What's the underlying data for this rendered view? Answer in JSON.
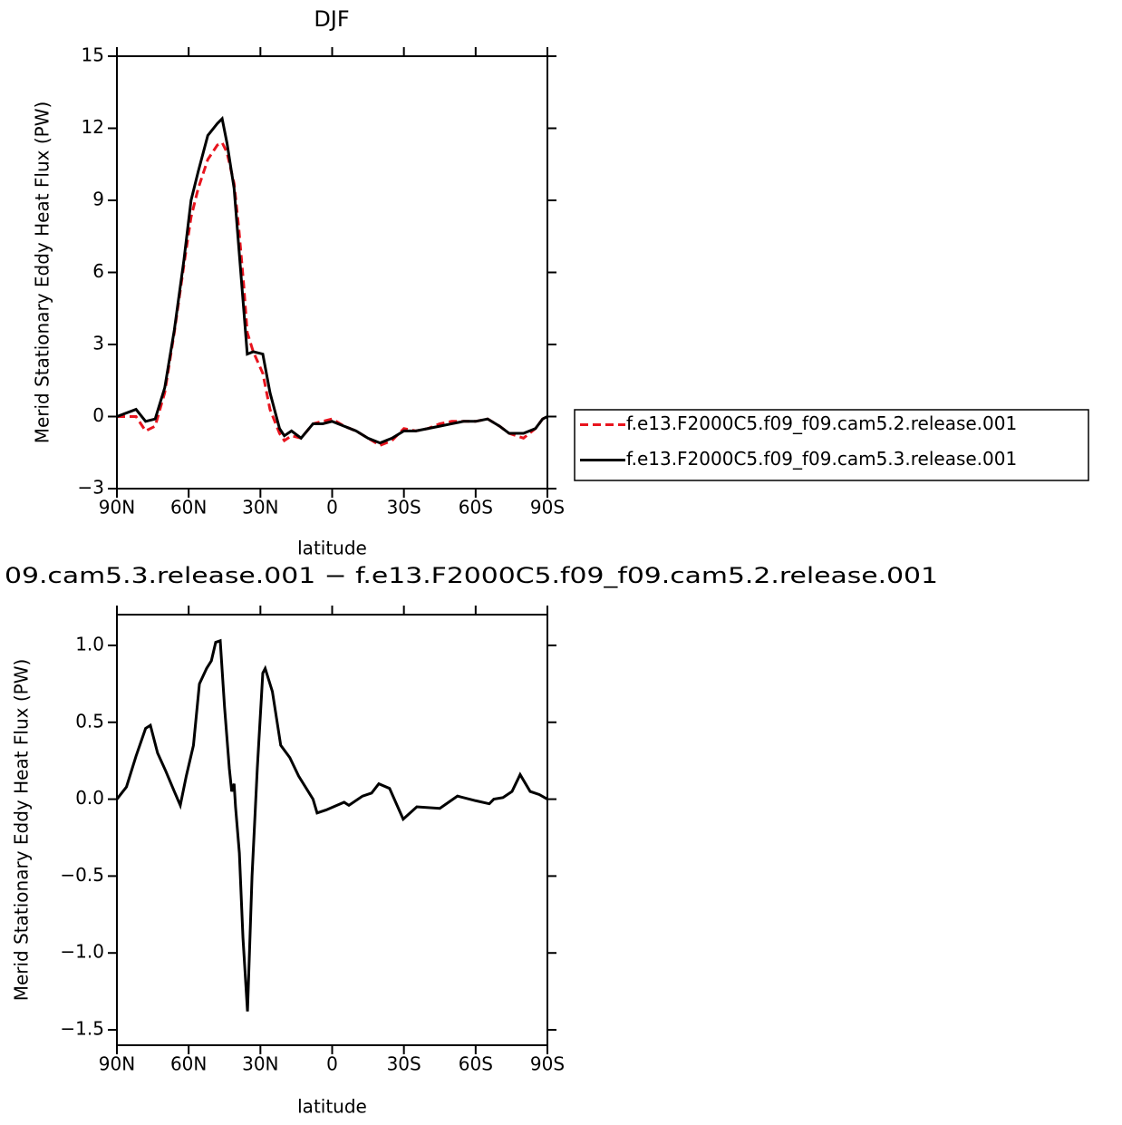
{
  "chart_data": [
    {
      "type": "line",
      "title": "DJF",
      "xlabel": "latitude",
      "ylabel": "Merid Stationary Eddy Heat Flux (PW)",
      "x": [
        90,
        82,
        78,
        74,
        70,
        66,
        62,
        59,
        56,
        52,
        48,
        46,
        44,
        41,
        39,
        37,
        35.5,
        33,
        29,
        26,
        22,
        20,
        17,
        13,
        8,
        4,
        0,
        -5,
        -10,
        -15,
        -20,
        -25,
        -30,
        -35,
        -40,
        -45,
        -50,
        -55,
        -60,
        -65,
        -70,
        -74,
        -80,
        -85,
        -88,
        -90
      ],
      "series": [
        {
          "name": "f.e13.F2000C5.f09_f09.cam5.2.release.001",
          "color": "#e8141e",
          "line_style": "dashed",
          "values": [
            0,
            0,
            -0.6,
            -0.4,
            1.0,
            3.5,
            6.3,
            8.3,
            9.5,
            10.7,
            11.3,
            11.4,
            11.0,
            9.7,
            7.8,
            5.5,
            3.5,
            2.7,
            1.8,
            0.3,
            -0.7,
            -1.0,
            -0.8,
            -0.9,
            -0.3,
            -0.2,
            -0.1,
            -0.4,
            -0.6,
            -0.9,
            -1.2,
            -1.0,
            -0.5,
            -0.6,
            -0.5,
            -0.3,
            -0.2,
            -0.2,
            -0.2,
            -0.1,
            -0.4,
            -0.7,
            -0.9,
            -0.5,
            -0.1,
            0
          ]
        },
        {
          "name": "f.e13.F2000C5.f09_f09.cam5.3.release.001",
          "color": "#000000",
          "line_style": "solid",
          "values": [
            0,
            0.3,
            -0.2,
            -0.1,
            1.2,
            3.6,
            6.5,
            9.0,
            10.2,
            11.7,
            12.2,
            12.4,
            11.4,
            9.5,
            7.0,
            4.5,
            2.6,
            2.7,
            2.6,
            1.0,
            -0.5,
            -0.8,
            -0.6,
            -0.9,
            -0.3,
            -0.3,
            -0.2,
            -0.4,
            -0.6,
            -0.9,
            -1.1,
            -0.9,
            -0.6,
            -0.6,
            -0.5,
            -0.4,
            -0.3,
            -0.2,
            -0.2,
            -0.1,
            -0.4,
            -0.7,
            -0.7,
            -0.5,
            -0.1,
            0
          ]
        }
      ],
      "xlim": [
        90,
        -90
      ],
      "xticks": [
        {
          "value": 90,
          "label": "90N"
        },
        {
          "value": 60,
          "label": "60N"
        },
        {
          "value": 30,
          "label": "30N"
        },
        0,
        {
          "value": -30,
          "label": "30S"
        },
        {
          "value": -60,
          "label": "60S"
        },
        {
          "value": -90,
          "label": "90S"
        }
      ],
      "ylim": [
        -3,
        15
      ],
      "yticks": [
        {
          "value": -3,
          "label": "−3"
        },
        0,
        3,
        6,
        9,
        12,
        15
      ],
      "legend": "outside-right"
    },
    {
      "type": "line",
      "title": "09.cam5.3.release.001 − f.e13.F2000C5.f09_f09.cam5.2.release.001",
      "xlabel": "latitude",
      "ylabel": "Merid Stationary Eddy Heat Flux (PW)",
      "x": [
        90,
        86,
        82,
        78,
        76,
        73,
        69.5,
        66,
        63.5,
        61,
        58,
        55.5,
        52.5,
        50.5,
        48.7,
        46.8,
        45,
        43,
        42,
        41,
        40.4,
        38.8,
        37.3,
        35.4,
        33.5,
        31.3,
        29,
        28,
        25,
        21.5,
        17.7,
        14,
        8,
        6.3,
        2.5,
        -5,
        -7,
        -12.7,
        -16.5,
        -19.5,
        -24,
        -29.7,
        -35.4,
        -45,
        -52.4,
        -60,
        -65.7,
        -67.6,
        -71.4,
        -75.2,
        -78.6,
        -82.8,
        -86.6,
        -90
      ],
      "series": [
        {
          "color": "#000000",
          "line_style": "solid",
          "values": [
            0,
            0.08,
            0.28,
            0.46,
            0.48,
            0.3,
            0.18,
            0.05,
            -0.04,
            0.15,
            0.35,
            0.75,
            0.85,
            0.9,
            1.02,
            1.03,
            0.6,
            0.2,
            0.05,
            0.1,
            -0.05,
            -0.35,
            -0.9,
            -1.38,
            -0.5,
            0.2,
            0.82,
            0.85,
            0.7,
            0.35,
            0.27,
            0.15,
            0.0,
            -0.09,
            -0.07,
            -0.02,
            -0.04,
            0.02,
            0.04,
            0.1,
            0.07,
            -0.13,
            -0.05,
            -0.06,
            0.02,
            -0.01,
            -0.03,
            0.0,
            0.01,
            0.05,
            0.16,
            0.05,
            0.03,
            0
          ]
        }
      ],
      "xlim": [
        90,
        -90
      ],
      "xticks": [
        {
          "value": 90,
          "label": "90N"
        },
        {
          "value": 60,
          "label": "60N"
        },
        {
          "value": 30,
          "label": "30N"
        },
        0,
        {
          "value": -30,
          "label": "30S"
        },
        {
          "value": -60,
          "label": "60S"
        },
        {
          "value": -90,
          "label": "90S"
        }
      ],
      "ylim": [
        -1.6,
        1.2
      ],
      "yticks": [
        {
          "value": -1.5,
          "label": "−1.5"
        },
        {
          "value": -1.0,
          "label": "−1.0"
        },
        {
          "value": -0.5,
          "label": "−0.5"
        },
        {
          "value": 0,
          "label": "0.0"
        },
        {
          "value": 0.5,
          "label": "0.5"
        },
        {
          "value": 1.0,
          "label": "1.0"
        }
      ]
    }
  ]
}
